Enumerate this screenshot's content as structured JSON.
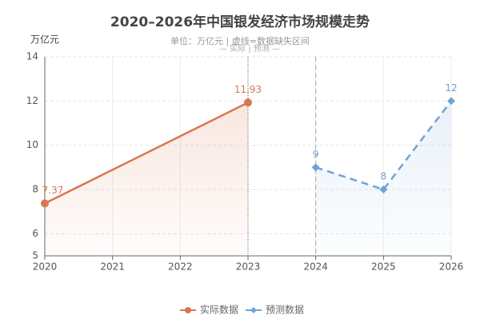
{
  "chart_data": {
    "type": "line",
    "title": "2020–2026年中国银发经济市场规模走势",
    "subtitle": "单位：万亿元 | 虚线=数据缺失区间",
    "annotation": "— 实际 | 预测 —",
    "y_axis_label": "万亿元",
    "xlim": [
      2020,
      2026
    ],
    "xticks": [
      2020,
      2021,
      2022,
      2023,
      2024,
      2025,
      2026
    ],
    "ylim": [
      5,
      14
    ],
    "yticks": [
      5,
      6,
      8,
      10,
      12,
      14
    ],
    "grid": true,
    "series": [
      {
        "name": "实际数据",
        "color": "#d9774f",
        "x": [
          2020,
          2023
        ],
        "values": [
          7.37,
          11.93
        ],
        "dashed": false,
        "marker": "circle"
      },
      {
        "name": "预测数据",
        "color": "#6fa3d8",
        "x": [
          2024,
          2025,
          2026
        ],
        "values": [
          9,
          8,
          12
        ],
        "dashed": true,
        "marker": "diamond"
      }
    ]
  }
}
